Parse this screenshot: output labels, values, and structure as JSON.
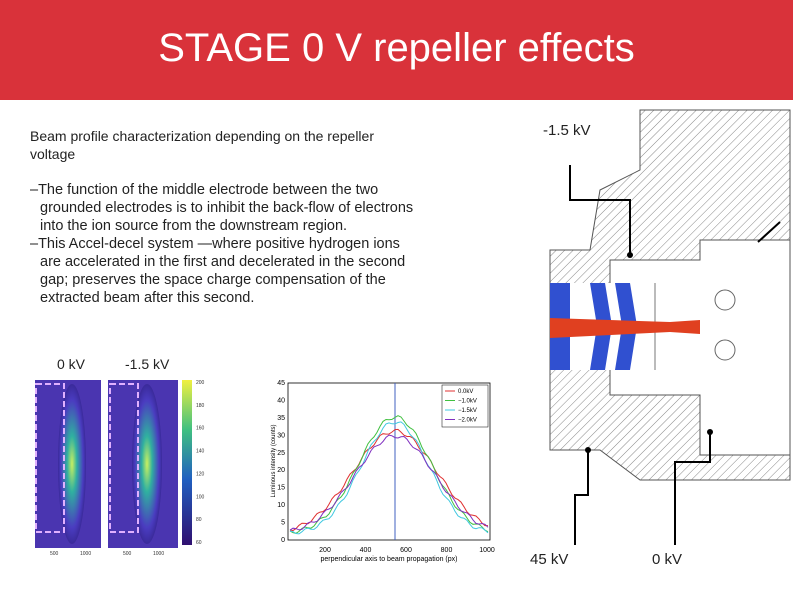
{
  "header": {
    "title": "STAGE 0 V repeller effects"
  },
  "body": {
    "intro": "Beam profile characterization depending on the repeller voltage",
    "bullets": [
      "–The function of the middle electrode between the two grounded electrodes is to inhibit the back-flow of electrons into the ion source from the downstream region.",
      "–This Accel-decel system —where positive hydrogen ions are accelerated in the first and decelerated in the second gap; preserves the space charge compensation of the extracted beam after this second."
    ]
  },
  "images": {
    "labels": [
      "0 kV",
      "-1.5 kV"
    ],
    "axis_ticks": [
      "500",
      "1000"
    ],
    "colorbar_ticks": [
      "200",
      "180",
      "160",
      "140",
      "120",
      "100",
      "80",
      "60"
    ]
  },
  "plot": {
    "x_label": "perpendicular axis to beam propagation (px)",
    "y_label": "Luminous intensity (counts)",
    "x_ticks": [
      "200",
      "400",
      "600",
      "800",
      "1000"
    ],
    "y_ticks": [
      "0",
      "5",
      "10",
      "15",
      "20",
      "25",
      "30",
      "35",
      "40",
      "45"
    ],
    "legend": [
      "0.0kV",
      "−1.0kV",
      "−1.5kV",
      "−2.0kV"
    ]
  },
  "diagram": {
    "labels": [
      "-1.5 kV",
      "45 kV",
      "0 kV"
    ]
  }
}
